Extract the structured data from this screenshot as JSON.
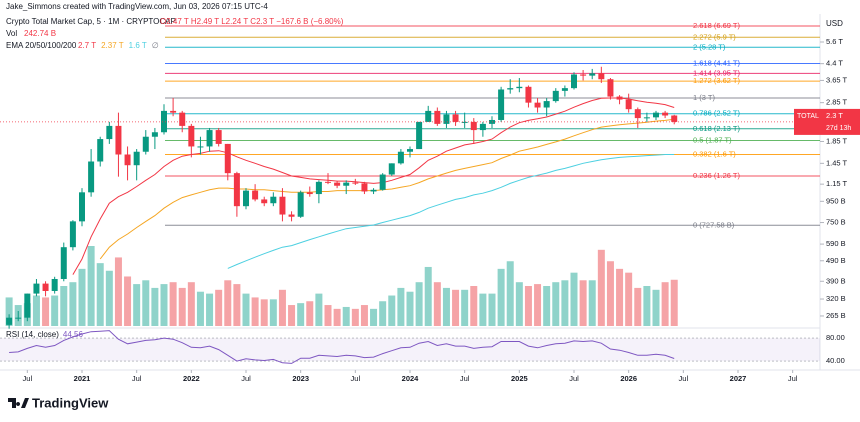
{
  "header": {
    "credit": "Jake_Simmons created with TradingView.com, Jun 03, 2026 07:15 UTC-4",
    "symbol": "Crypto Total Market Cap, 5 · 1M · CRYPTOCAP",
    "ohlc": "O2.47 T H2.49 T L2.24 T C2.3 T −167.6 B (−6.80%)",
    "vol": "Vol",
    "vol_value": "242.74 B",
    "currency": "USD"
  },
  "footer": {
    "logo": "TradingView"
  },
  "chart_data": {
    "type": "candlestick",
    "log_scale": true,
    "grid": false,
    "up_color": "#089981",
    "down_color": "#f23645",
    "vol_up_color": "#8fd3ca",
    "vol_down_color": "#f5a3a6",
    "x": [
      "2020-05",
      "2020-06",
      "2020-07",
      "2020-08",
      "2020-09",
      "2020-10",
      "2020-11",
      "2020-12",
      "2021-01",
      "2021-02",
      "2021-03",
      "2021-04",
      "2021-05",
      "2021-06",
      "2021-07",
      "2021-08",
      "2021-09",
      "2021-10",
      "2021-11",
      "2021-12",
      "2022-01",
      "2022-02",
      "2022-03",
      "2022-04",
      "2022-05",
      "2022-06",
      "2022-07",
      "2022-08",
      "2022-09",
      "2022-10",
      "2022-11",
      "2022-12",
      "2023-01",
      "2023-02",
      "2023-03",
      "2023-04",
      "2023-05",
      "2023-06",
      "2023-07",
      "2023-08",
      "2023-09",
      "2023-10",
      "2023-11",
      "2023-12",
      "2024-01",
      "2024-02",
      "2024-03",
      "2024-04",
      "2024-05",
      "2024-06",
      "2024-07",
      "2024-08",
      "2024-09",
      "2024-10",
      "2024-11",
      "2024-12",
      "2025-01",
      "2025-02",
      "2025-03",
      "2025-04",
      "2025-05",
      "2025-06",
      "2025-07",
      "2025-08",
      "2025-09",
      "2025-10",
      "2025-11",
      "2025-12",
      "2026-01",
      "2026-02",
      "2026-03",
      "2026-04",
      "2026-05",
      "2026-06"
    ],
    "open": [
      0.24,
      0.26,
      0.26,
      0.34,
      0.38,
      0.35,
      0.4,
      0.57,
      0.76,
      1.05,
      1.48,
      1.9,
      2.2,
      1.6,
      1.42,
      1.65,
      1.95,
      2.05,
      2.6,
      2.55,
      2.2,
      1.75,
      1.75,
      2.1,
      1.8,
      1.3,
      0.9,
      1.07,
      0.97,
      0.93,
      1.0,
      0.82,
      0.8,
      1.05,
      1.03,
      1.18,
      1.17,
      1.13,
      1.17,
      1.16,
      1.06,
      1.08,
      1.28,
      1.45,
      1.65,
      1.7,
      2.3,
      2.6,
      2.25,
      2.5,
      2.3,
      2.3,
      2.1,
      2.25,
      2.35,
      3.3,
      3.35,
      3.4,
      2.85,
      2.7,
      2.9,
      3.25,
      3.35,
      3.9,
      3.85,
      3.95,
      3.7,
      3.05,
      2.95,
      2.65,
      2.4,
      2.42,
      2.55,
      2.47
    ],
    "high": [
      0.27,
      0.28,
      0.34,
      0.4,
      0.39,
      0.41,
      0.6,
      0.77,
      1.1,
      1.7,
      1.95,
      2.3,
      2.55,
      1.75,
      1.7,
      2.1,
      2.15,
      2.8,
      3.0,
      2.6,
      2.25,
      1.95,
      2.15,
      2.15,
      1.8,
      1.32,
      1.1,
      1.15,
      1.0,
      1.05,
      1.1,
      0.85,
      1.07,
      1.12,
      1.2,
      1.3,
      1.19,
      1.2,
      1.22,
      1.18,
      1.1,
      1.3,
      1.45,
      1.7,
      1.75,
      2.3,
      2.75,
      2.7,
      2.6,
      2.6,
      2.55,
      2.4,
      2.3,
      2.45,
      3.4,
      3.7,
      3.75,
      3.45,
      3.0,
      3.0,
      3.35,
      3.45,
      4.0,
      4.1,
      4.15,
      4.25,
      3.75,
      3.1,
      3.15,
      2.7,
      2.55,
      2.6,
      2.6,
      2.49
    ],
    "low": [
      0.23,
      0.25,
      0.25,
      0.33,
      0.33,
      0.34,
      0.39,
      0.55,
      0.72,
      1.0,
      1.4,
      1.8,
      1.25,
      1.2,
      1.2,
      1.6,
      1.7,
      2.0,
      2.45,
      2.05,
      1.55,
      1.6,
      1.65,
      1.75,
      1.2,
      0.8,
      0.87,
      0.95,
      0.9,
      0.9,
      0.76,
      0.76,
      0.79,
      1.0,
      0.93,
      1.15,
      1.1,
      1.03,
      1.14,
      1.03,
      1.03,
      1.07,
      1.26,
      1.43,
      1.55,
      1.7,
      2.3,
      2.2,
      2.15,
      2.2,
      2.15,
      1.8,
      1.95,
      2.15,
      2.3,
      3.15,
      3.2,
      2.7,
      2.55,
      2.45,
      2.85,
      3.05,
      3.3,
      3.65,
      3.7,
      3.55,
      2.95,
      2.8,
      2.55,
      2.15,
      2.3,
      2.35,
      2.4,
      2.24
    ],
    "close": [
      0.26,
      0.26,
      0.34,
      0.38,
      0.35,
      0.4,
      0.57,
      0.76,
      1.05,
      1.48,
      1.9,
      2.2,
      1.6,
      1.42,
      1.65,
      1.95,
      2.05,
      2.6,
      2.55,
      2.2,
      1.75,
      1.75,
      2.1,
      1.8,
      1.3,
      0.9,
      1.07,
      0.97,
      0.93,
      1.0,
      0.82,
      0.8,
      1.05,
      1.03,
      1.18,
      1.17,
      1.13,
      1.17,
      1.16,
      1.06,
      1.08,
      1.28,
      1.45,
      1.65,
      1.7,
      2.3,
      2.6,
      2.25,
      2.5,
      2.3,
      2.3,
      2.1,
      2.25,
      2.35,
      3.3,
      3.35,
      3.4,
      2.85,
      2.7,
      2.9,
      3.25,
      3.35,
      3.9,
      3.85,
      3.95,
      3.7,
      3.05,
      2.95,
      2.65,
      2.4,
      2.42,
      2.55,
      2.47,
      2.3
    ],
    "volume": [
      150,
      110,
      120,
      160,
      150,
      160,
      210,
      230,
      300,
      420,
      330,
      290,
      360,
      260,
      220,
      240,
      200,
      220,
      230,
      200,
      230,
      180,
      170,
      190,
      240,
      220,
      170,
      150,
      140,
      140,
      190,
      110,
      120,
      130,
      170,
      110,
      90,
      100,
      90,
      110,
      90,
      130,
      160,
      200,
      180,
      230,
      310,
      230,
      200,
      190,
      190,
      210,
      170,
      170,
      300,
      340,
      230,
      210,
      220,
      210,
      230,
      240,
      280,
      240,
      240,
      400,
      340,
      300,
      280,
      200,
      210,
      190,
      230,
      242.74
    ],
    "ema_label": "EMA 20/50/100/200",
    "ema_missing": "∅",
    "ema": [
      {
        "color": "#f23645",
        "legend": "2.7 T",
        "values": [
          null,
          null,
          null,
          null,
          null,
          null,
          null,
          0.42,
          0.5,
          0.64,
          0.78,
          0.93,
          1.0,
          1.05,
          1.12,
          1.2,
          1.28,
          1.4,
          1.5,
          1.57,
          1.6,
          1.62,
          1.66,
          1.67,
          1.63,
          1.56,
          1.5,
          1.45,
          1.4,
          1.36,
          1.31,
          1.26,
          1.24,
          1.22,
          1.21,
          1.2,
          1.19,
          1.19,
          1.18,
          1.17,
          1.16,
          1.17,
          1.2,
          1.24,
          1.28,
          1.38,
          1.5,
          1.57,
          1.66,
          1.72,
          1.78,
          1.81,
          1.85,
          1.9,
          2.04,
          2.17,
          2.28,
          2.34,
          2.38,
          2.43,
          2.51,
          2.59,
          2.71,
          2.82,
          2.92,
          2.99,
          3.0,
          3.0,
          2.97,
          2.91,
          2.86,
          2.83,
          2.79,
          2.7
        ]
      },
      {
        "color": "#f5a623",
        "legend": "2.37 T",
        "values": [
          null,
          null,
          null,
          null,
          null,
          null,
          null,
          null,
          null,
          null,
          0.5,
          0.57,
          0.62,
          0.66,
          0.71,
          0.76,
          0.81,
          0.88,
          0.94,
          0.99,
          1.02,
          1.05,
          1.08,
          1.1,
          1.1,
          1.09,
          1.09,
          1.08,
          1.08,
          1.07,
          1.06,
          1.05,
          1.05,
          1.05,
          1.06,
          1.06,
          1.07,
          1.07,
          1.07,
          1.07,
          1.07,
          1.08,
          1.09,
          1.11,
          1.13,
          1.17,
          1.22,
          1.26,
          1.3,
          1.34,
          1.37,
          1.4,
          1.43,
          1.46,
          1.53,
          1.59,
          1.66,
          1.7,
          1.74,
          1.79,
          1.84,
          1.9,
          1.97,
          2.04,
          2.11,
          2.17,
          2.2,
          2.23,
          2.25,
          2.27,
          2.29,
          2.32,
          2.34,
          2.37
        ]
      },
      {
        "color": "#4dd0e1",
        "legend": "1.6 T",
        "values": [
          null,
          null,
          null,
          null,
          null,
          null,
          null,
          null,
          null,
          null,
          null,
          null,
          null,
          null,
          null,
          null,
          null,
          null,
          null,
          null,
          null,
          null,
          null,
          null,
          0.45,
          0.47,
          0.49,
          0.51,
          0.53,
          0.55,
          0.57,
          0.58,
          0.6,
          0.62,
          0.64,
          0.66,
          0.68,
          0.7,
          0.71,
          0.72,
          0.73,
          0.75,
          0.77,
          0.79,
          0.81,
          0.84,
          0.88,
          0.91,
          0.94,
          0.97,
          0.99,
          1.02,
          1.04,
          1.07,
          1.11,
          1.16,
          1.2,
          1.24,
          1.27,
          1.3,
          1.34,
          1.37,
          1.41,
          1.45,
          1.48,
          1.51,
          1.53,
          1.55,
          1.56,
          1.57,
          1.58,
          1.59,
          1.6,
          1.6
        ]
      }
    ],
    "fib": [
      {
        "label": "2.618 (6.69 T)",
        "value": 6.69,
        "color": "#f23645"
      },
      {
        "label": "2.272 (5.9 T)",
        "value": 5.9,
        "color": "#d4a017"
      },
      {
        "label": "2 (5.28 T)",
        "value": 5.28,
        "color": "#00acc1"
      },
      {
        "label": "1.618 (4.41 T)",
        "value": 4.41,
        "color": "#2962ff"
      },
      {
        "label": "1.414 (3.95 T)",
        "value": 3.95,
        "color": "#e91e63"
      },
      {
        "label": "1.272 (3.62 T)",
        "value": 3.62,
        "color": "#ff9800"
      },
      {
        "label": "1 (3 T)",
        "value": 3,
        "color": "#787b86"
      },
      {
        "label": "0.786 (2.52 T)",
        "value": 2.52,
        "color": "#00acc1"
      },
      {
        "label": "0.618 (2.13 T)",
        "value": 2.13,
        "color": "#089981"
      },
      {
        "label": "0.5 (1.87 T)",
        "value": 1.87,
        "color": "#4caf50"
      },
      {
        "label": "0.382 (1.6 T)",
        "value": 1.6,
        "color": "#ff9800"
      },
      {
        "label": "0.236 (1.26 T)",
        "value": 1.26,
        "color": "#f23645"
      },
      {
        "label": "0 (727.58 B)",
        "value": 0.72758,
        "color": "#787b86"
      }
    ],
    "ylim": [
      0.237,
      7.48
    ],
    "yticks": [
      {
        "value": 5.6,
        "label": "5.6 T"
      },
      {
        "value": 4.4,
        "label": "4.4 T"
      },
      {
        "value": 3.65,
        "label": "3.65 T"
      },
      {
        "value": 2.85,
        "label": "2.85 T"
      },
      {
        "value": 1.85,
        "label": "1.85 T"
      },
      {
        "value": 1.45,
        "label": "1.45 T"
      },
      {
        "value": 1.15,
        "label": "1.15 T"
      },
      {
        "value": 0.95,
        "label": "950 B"
      },
      {
        "value": 0.75,
        "label": "750 B"
      },
      {
        "value": 0.59,
        "label": "590 B"
      },
      {
        "value": 0.49,
        "label": "490 B"
      },
      {
        "value": 0.39,
        "label": "390 B"
      },
      {
        "value": 0.32,
        "label": "320 B"
      },
      {
        "value": 0.265,
        "label": "265 B"
      }
    ],
    "xlim": [
      "2020-04",
      "2027-10"
    ],
    "xticks": [
      {
        "value": "2020-07",
        "label": "Jul"
      },
      {
        "value": "2021-01",
        "label": "2021"
      },
      {
        "value": "2021-07",
        "label": "Jul"
      },
      {
        "value": "2022-01",
        "label": "2022"
      },
      {
        "value": "2022-07",
        "label": "Jul"
      },
      {
        "value": "2023-01",
        "label": "2023"
      },
      {
        "value": "2023-07",
        "label": "Jul"
      },
      {
        "value": "2024-01",
        "label": "2024"
      },
      {
        "value": "2024-07",
        "label": "Jul"
      },
      {
        "value": "2025-01",
        "label": "2025"
      },
      {
        "value": "2025-07",
        "label": "Jul"
      },
      {
        "value": "2026-01",
        "label": "2026"
      },
      {
        "value": "2026-07",
        "label": "Jul"
      },
      {
        "value": "2027-01",
        "label": "2027"
      },
      {
        "value": "2027-07",
        "label": "Jul"
      }
    ],
    "price_tag": {
      "symbol": "TOTAL",
      "label": "2.3 T",
      "value": 2.3,
      "countdown": "27d 13h"
    },
    "rsi": {
      "label": "RSI (14, close)",
      "color": "#7e57c2",
      "ylim": [
        28,
        94
      ],
      "yticks": [
        {
          "value": 80,
          "label": "80.00"
        },
        {
          "value": 40,
          "label": "40.00"
        }
      ],
      "values": [
        55,
        56,
        62,
        67,
        64,
        67,
        76,
        82,
        87,
        91,
        92,
        93,
        78,
        70,
        73,
        76,
        77,
        80,
        78,
        72,
        64,
        63,
        66,
        60,
        50,
        40,
        44,
        42,
        41,
        43,
        37,
        36,
        45,
        45,
        50,
        49,
        48,
        50,
        49,
        46,
        47,
        53,
        58,
        63,
        64,
        71,
        74,
        67,
        70,
        66,
        66,
        62,
        64,
        65,
        74,
        74,
        74,
        66,
        63,
        67,
        70,
        71,
        75,
        74,
        75,
        71,
        61,
        59,
        55,
        50,
        50,
        52,
        50,
        44.56
      ]
    }
  }
}
